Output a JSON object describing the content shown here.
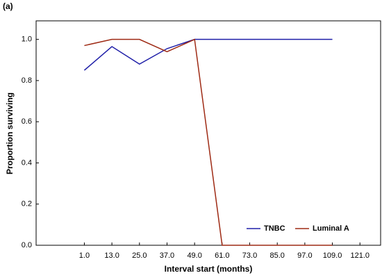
{
  "chart_data": {
    "type": "line",
    "title": "(a)",
    "x_label": "Interval start (months)",
    "y_label": "Proportion surviving",
    "x": [
      1,
      13,
      25,
      37,
      49,
      61,
      73,
      85,
      97,
      109
    ],
    "series": [
      {
        "name": "TNBC",
        "color": "#1f1fa8",
        "values": [
          0.85,
          0.965,
          0.88,
          0.955,
          1.0,
          1.0,
          1.0,
          1.0,
          1.0,
          1.0
        ]
      },
      {
        "name": "Luminal A",
        "color": "#9e2a14",
        "values": [
          0.97,
          1.0,
          1.0,
          0.94,
          1.0,
          0,
          0,
          0,
          0,
          0
        ]
      }
    ],
    "xlim": [
      -20,
      130
    ],
    "xticks": [
      {
        "value": 1,
        "label": "1.0"
      },
      {
        "value": 13,
        "label": "13.0"
      },
      {
        "value": 25,
        "label": "25.0"
      },
      {
        "value": 37,
        "label": "37.0"
      },
      {
        "value": 49,
        "label": "49.0"
      },
      {
        "value": 61,
        "label": "61.0"
      },
      {
        "value": 73,
        "label": "73.0"
      },
      {
        "value": 85,
        "label": "85.0"
      },
      {
        "value": 97,
        "label": "97.0"
      },
      {
        "value": 109,
        "label": "109.0"
      },
      {
        "value": 121,
        "label": "121.0"
      }
    ],
    "ylim": [
      0,
      1.09
    ],
    "yticks": [
      {
        "value": 0,
        "label": "0.0"
      },
      {
        "value": 0.2,
        "label": "0.2"
      },
      {
        "value": 0.4,
        "label": "0.4"
      },
      {
        "value": 0.6,
        "label": "0.6"
      },
      {
        "value": 0.8,
        "label": "0.8"
      },
      {
        "value": 1,
        "label": "1.0"
      }
    ],
    "grid": false,
    "legend": "lower right"
  }
}
